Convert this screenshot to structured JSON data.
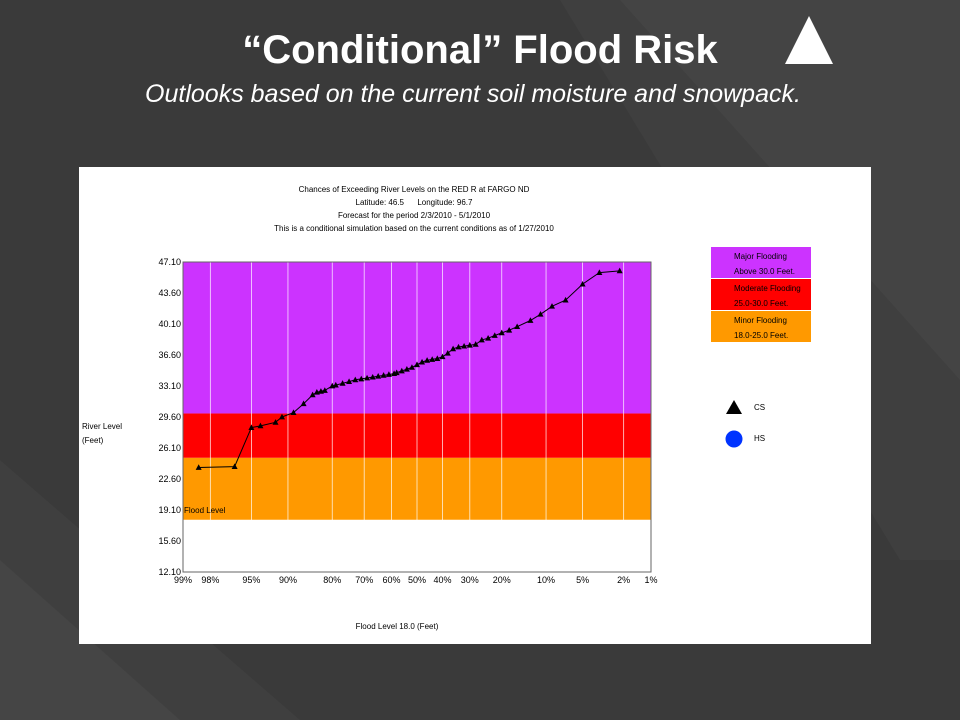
{
  "slide": {
    "title": "“Conditional” Flood Risk",
    "subtitle": "Outlooks based on the current soil moisture and snowpack."
  },
  "icons": {
    "title_marker": "triangle-up-icon"
  },
  "chart_header": {
    "line1": "Chances of Exceeding River Levels on the RED R at FARGO ND",
    "line2": "Latitude: 46.5      Longitude: 96.7",
    "line3": "Forecast for the period 2/3/2010 - 5/1/2010",
    "line4": "This is a conditional simulation based on the current conditions as of 1/27/2010"
  },
  "legend": {
    "major_1": "Major Flooding",
    "major_2": "Above 30.0 Feet.",
    "moderate_1": "Moderate Flooding",
    "moderate_2": "25.0-30.0 Feet.",
    "minor_1": "Minor Flooding",
    "minor_2": "18.0-25.0 Feet.",
    "cs": "CS",
    "hs": "HS"
  },
  "colors": {
    "background": "#3a3a3a",
    "major": "#cc33ff",
    "moderate": "#ff0000",
    "minor": "#ff9900",
    "hs_marker": "#0033ff"
  },
  "chart_data": {
    "type": "line",
    "ylabel": "River Level\n(Feet)",
    "xlabel": "Flood Level 18.0 (Feet)",
    "flood_level_label": "Flood Level",
    "yticks": [
      "47.10",
      "43.60",
      "40.10",
      "36.60",
      "33.10",
      "29.60",
      "26.10",
      "22.60",
      "19.10",
      "15.60",
      "12.10"
    ],
    "ylim": [
      12.1,
      47.1
    ],
    "xticks": [
      "99%",
      "98%",
      "95%",
      "90%",
      "80%",
      "70%",
      "60%",
      "50%",
      "40%",
      "30%",
      "20%",
      "10%",
      "5%",
      "2%",
      "1%"
    ],
    "bands": [
      {
        "name": "Minor Flooding",
        "from": 18.0,
        "to": 25.0,
        "color": "#ff9900"
      },
      {
        "name": "Moderate Flooding",
        "from": 25.0,
        "to": 30.0,
        "color": "#ff0000"
      },
      {
        "name": "Major Flooding",
        "from": 30.0,
        "to": 47.1,
        "color": "#cc33ff"
      }
    ],
    "series": [
      {
        "name": "CS",
        "marker": "triangle",
        "points": [
          [
            98.5,
            23.9
          ],
          [
            96.5,
            24.0
          ],
          [
            95,
            28.4
          ],
          [
            94,
            28.6
          ],
          [
            92,
            29.0
          ],
          [
            91,
            29.6
          ],
          [
            89,
            30.1
          ],
          [
            87,
            31.1
          ],
          [
            85,
            32.1
          ],
          [
            84,
            32.4
          ],
          [
            83,
            32.5
          ],
          [
            82,
            32.6
          ],
          [
            80,
            33.1
          ],
          [
            79,
            33.2
          ],
          [
            77,
            33.4
          ],
          [
            75,
            33.6
          ],
          [
            73,
            33.8
          ],
          [
            71,
            33.9
          ],
          [
            69,
            34.0
          ],
          [
            67,
            34.1
          ],
          [
            65,
            34.2
          ],
          [
            63,
            34.3
          ],
          [
            61,
            34.4
          ],
          [
            59,
            34.5
          ],
          [
            58,
            34.6
          ],
          [
            56,
            34.8
          ],
          [
            54,
            35.0
          ],
          [
            52,
            35.2
          ],
          [
            50,
            35.5
          ],
          [
            48,
            35.8
          ],
          [
            46,
            36.0
          ],
          [
            44,
            36.1
          ],
          [
            42,
            36.2
          ],
          [
            40,
            36.4
          ],
          [
            38,
            36.8
          ],
          [
            36,
            37.3
          ],
          [
            34,
            37.5
          ],
          [
            32,
            37.6
          ],
          [
            30,
            37.7
          ],
          [
            28,
            37.8
          ],
          [
            26,
            38.3
          ],
          [
            24,
            38.5
          ],
          [
            22,
            38.8
          ],
          [
            20,
            39.1
          ],
          [
            18,
            39.4
          ],
          [
            16,
            39.8
          ],
          [
            13,
            40.5
          ],
          [
            11,
            41.2
          ],
          [
            9,
            42.1
          ],
          [
            7,
            42.8
          ],
          [
            5,
            44.6
          ],
          [
            3.5,
            45.9
          ],
          [
            2.2,
            46.1
          ]
        ]
      }
    ]
  }
}
